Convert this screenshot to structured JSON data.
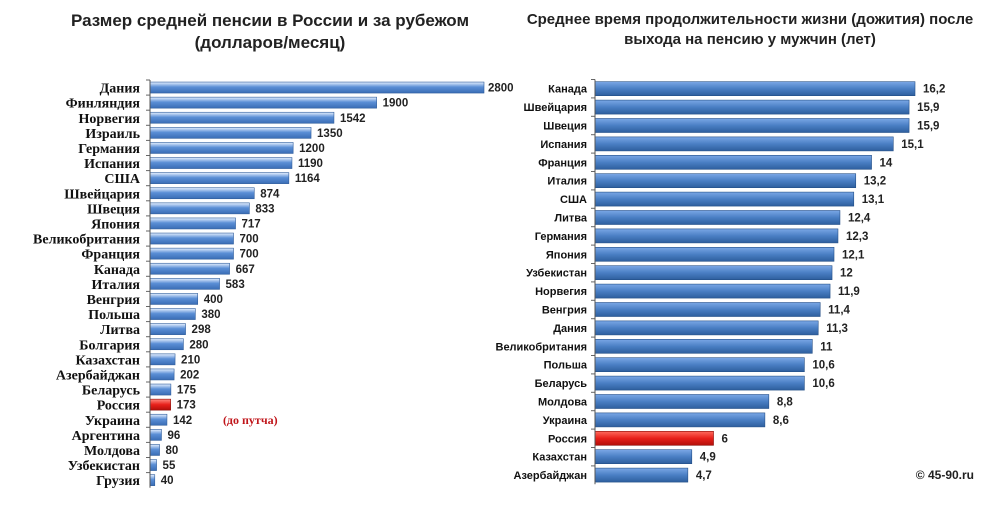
{
  "chart_data": [
    {
      "type": "bar",
      "orientation": "horizontal",
      "title": "Размер средней пенсии в России и за рубежом",
      "subtitle": "(долларов/месяц)",
      "categories": [
        "Дания",
        "Финляндия",
        "Норвегия",
        "Израиль",
        "Германия",
        "Испания",
        "США",
        "Швейцария",
        "Швеция",
        "Япония",
        "Великобритания",
        "Франция",
        "Канада",
        "Италия",
        "Венгрия",
        "Польша",
        "Литва",
        "Болгария",
        "Казахстан",
        "Азербайджан",
        "Беларусь",
        "Россия",
        "Украина",
        "Аргентина",
        "Молдова",
        "Узбекистан",
        "Грузия"
      ],
      "values": [
        2800,
        1900,
        1542,
        1350,
        1200,
        1190,
        1164,
        874,
        833,
        717,
        700,
        700,
        667,
        583,
        400,
        380,
        298,
        280,
        210,
        202,
        175,
        173,
        142,
        96,
        80,
        55,
        40
      ],
      "value_labels": [
        "2800",
        "1900",
        "1542",
        "1350",
        "1200",
        "1190",
        "1164",
        "874",
        "833",
        "717",
        "700",
        "700",
        "667",
        "583",
        "400",
        "380",
        "298",
        "280",
        "210",
        "202",
        "175",
        "173",
        "142",
        "96",
        "80",
        "55",
        "40"
      ],
      "highlight_category": "Россия",
      "annotations": [
        {
          "category": "Украина",
          "text": "(до путча)"
        }
      ],
      "xlim": [
        0,
        2800
      ],
      "colors": {
        "bar": "#5b8fd6",
        "highlight": "#e8201a",
        "annotation": "#c0151a"
      }
    },
    {
      "type": "bar",
      "orientation": "horizontal",
      "title": "Среднее время продолжительности жизни (дожития) после выхода на пенсию у мужчин (лет)",
      "categories": [
        "Канада",
        "Швейцария",
        "Швеция",
        "Испания",
        "Франция",
        "Италия",
        "США",
        "Литва",
        "Германия",
        "Япония",
        "Узбекистан",
        "Норвегия",
        "Венгрия",
        "Дания",
        "Великобритания",
        "Польша",
        "Беларусь",
        "Молдова",
        "Украина",
        "Россия",
        "Казахстан",
        "Азербайджан"
      ],
      "values": [
        16.2,
        15.9,
        15.9,
        15.1,
        14,
        13.2,
        13.1,
        12.4,
        12.3,
        12.1,
        12,
        11.9,
        11.4,
        11.3,
        11,
        10.6,
        10.6,
        8.8,
        8.6,
        6,
        4.9,
        4.7
      ],
      "value_labels": [
        "16,2",
        "15,9",
        "15,9",
        "15,1",
        "14",
        "13,2",
        "13,1",
        "12,4",
        "12,3",
        "12,1",
        "12",
        "11,9",
        "11,4",
        "11,3",
        "11",
        "10,6",
        "10,6",
        "8,8",
        "8,6",
        "6",
        "4,9",
        "4,7"
      ],
      "highlight_category": "Россия",
      "colors": {
        "bar": "#4a7fc4",
        "highlight": "#e8201a"
      }
    }
  ],
  "credit": "© 45-90.ru"
}
